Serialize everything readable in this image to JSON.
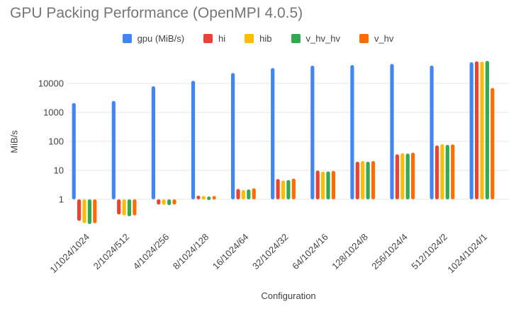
{
  "title": "GPU Packing Performance (OpenMPI 4.0.5)",
  "colors": {
    "title_text": "#757575",
    "axis_text": "#424242",
    "gridline": "#e6e6e6",
    "background": "#ffffff"
  },
  "chart_data": {
    "type": "bar",
    "title": "GPU Packing Performance (OpenMPI 4.0.5)",
    "xlabel": "Configuration",
    "ylabel": "MiB/s",
    "y_scale": "log",
    "ylim": [
      0.1,
      100000
    ],
    "y_ticks": [
      1,
      10,
      100,
      1000,
      10000
    ],
    "y_tick_labels": [
      "1",
      "10",
      "100",
      "1000",
      "10000"
    ],
    "grid": true,
    "legend_position": "top",
    "categories": [
      "1/1024/1024",
      "2/1024/512",
      "4/1024/256",
      "8/1024/128",
      "16/1024/64",
      "32/1024/32",
      "64/1024/16",
      "128/1024/8",
      "256/1024/4",
      "512/1024/2",
      "1024/1024/1"
    ],
    "series": [
      {
        "name": "gpu (MiB/s)",
        "color": "#4285F4",
        "values": [
          2100,
          2500,
          8000,
          12300,
          23000,
          34000,
          41000,
          43000,
          47000,
          41500,
          54000
        ]
      },
      {
        "name": "hi",
        "color": "#EA4335",
        "values": [
          0.18,
          0.3,
          0.66,
          1.35,
          2.3,
          5.0,
          9.9,
          20,
          36,
          72,
          58000
        ]
      },
      {
        "name": "hib",
        "color": "#FBBC04",
        "values": [
          0.15,
          0.28,
          0.65,
          1.3,
          2.1,
          4.5,
          9.1,
          21,
          39,
          80,
          56000
        ]
      },
      {
        "name": "v_hv_hv",
        "color": "#34A853",
        "values": [
          0.14,
          0.26,
          0.63,
          1.25,
          2.2,
          4.6,
          9.2,
          20,
          38,
          76,
          60000
        ]
      },
      {
        "name": "v_hv",
        "color": "#FF6D01",
        "values": [
          0.15,
          0.28,
          0.66,
          1.3,
          2.4,
          5.2,
          9.6,
          21,
          41,
          79,
          7000
        ]
      }
    ]
  }
}
